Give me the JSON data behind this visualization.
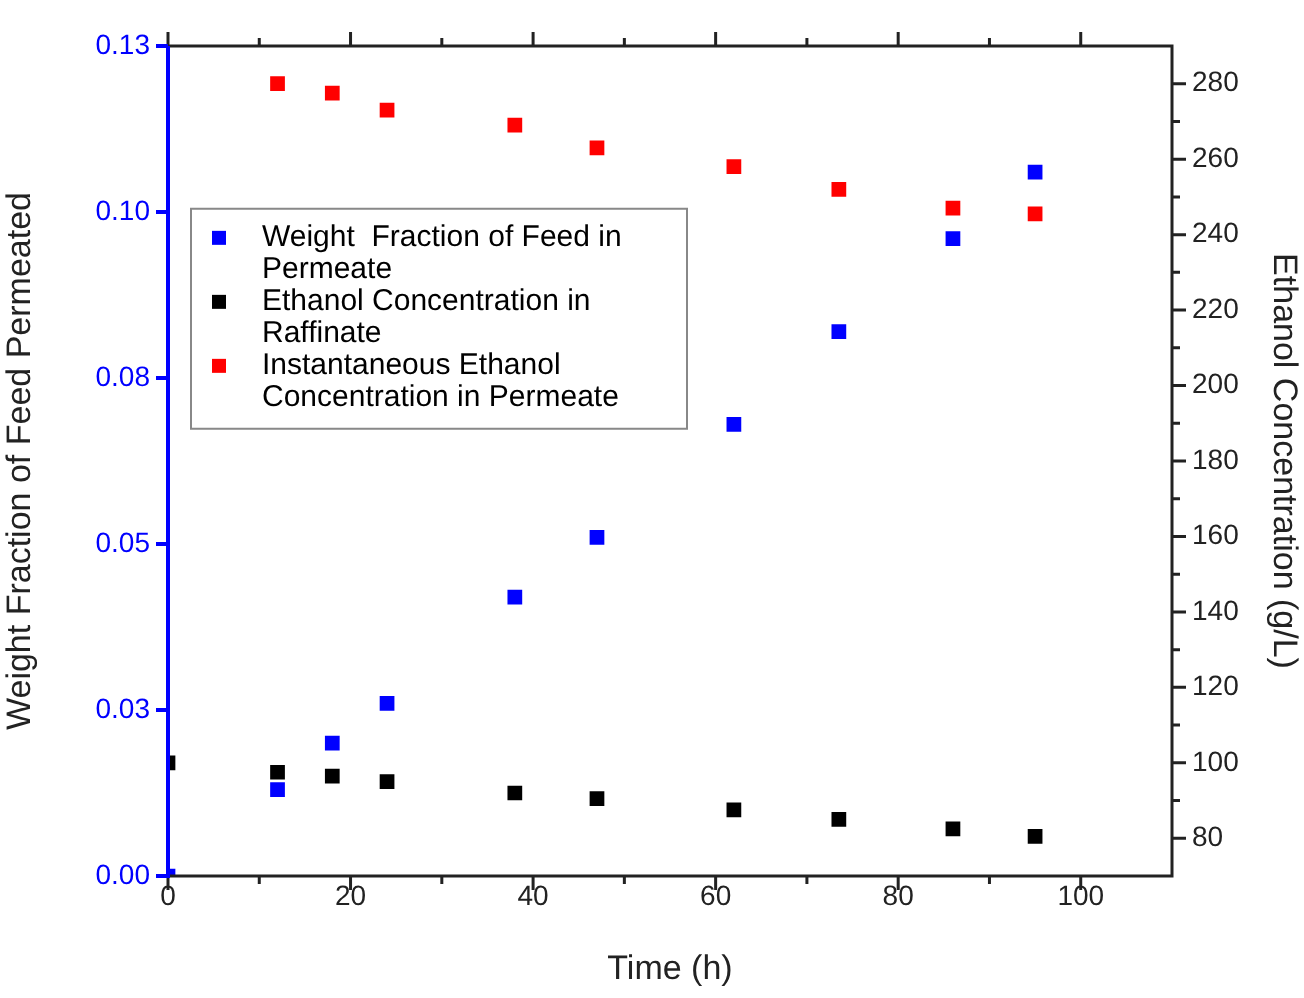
{
  "chart_data": {
    "type": "scatter",
    "xlabel": "Time (h)",
    "ylabel": "Weight Fraction of Feed Permeated",
    "y2label": "Ethanol Concentration (g/L)",
    "xlim": [
      0,
      110
    ],
    "xticks": [
      0,
      20,
      40,
      60,
      80,
      100
    ],
    "ylim": [
      0,
      0.125
    ],
    "yticks": [
      {
        "value": 0,
        "label": "0.00"
      },
      {
        "value": 0.025,
        "label": "0.03"
      },
      {
        "value": 0.05,
        "label": "0.05"
      },
      {
        "value": 0.075,
        "label": "0.08"
      },
      {
        "value": 0.1,
        "label": "0.10"
      },
      {
        "value": 0.125,
        "label": "0.13"
      }
    ],
    "y2lim": [
      70,
      290
    ],
    "y2ticks": [
      80,
      100,
      120,
      140,
      160,
      180,
      200,
      220,
      240,
      260,
      280
    ],
    "marker": "square",
    "legend": "left",
    "grid": false,
    "series": [
      {
        "name": "Weight  Fraction of Feed in Permeate",
        "color": "#0000ff",
        "x": [
          0,
          12,
          18,
          24,
          38,
          47,
          62,
          73.5,
          86,
          95
        ],
        "values": [
          0,
          0.013,
          0.02,
          0.026,
          0.042,
          0.051,
          0.068,
          0.082,
          0.096,
          0.106
        ]
      },
      {
        "name": "Ethanol Concentration in Raffinate",
        "color": "#000000",
        "axis": "y2",
        "x": [
          0,
          12,
          18,
          24,
          38,
          47,
          62,
          73.5,
          86,
          95
        ],
        "values": [
          100,
          97.5,
          96.5,
          95,
          92,
          90.5,
          87.5,
          85,
          82.5,
          80.5
        ]
      },
      {
        "name": "Instantaneous Ethanol Concentration in Permeate",
        "color": "#ff0000",
        "axis": "y2",
        "x": [
          12,
          18,
          24,
          38,
          47,
          62,
          73.5,
          86,
          95
        ],
        "values": [
          280,
          277.5,
          273,
          269,
          263,
          258,
          252,
          247,
          245.5
        ]
      }
    ]
  }
}
